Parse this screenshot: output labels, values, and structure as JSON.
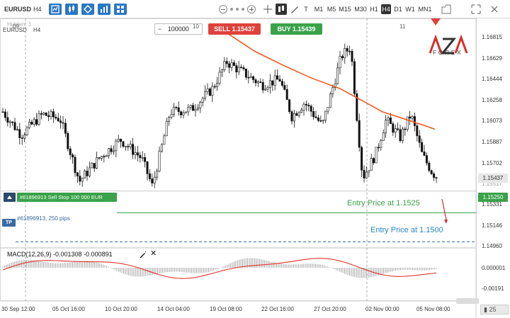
{
  "toolbar": {
    "symbol": "EURUSD",
    "timeframe": "H4",
    "timeframes": [
      "T",
      "M1",
      "M5",
      "M15",
      "M30",
      "H1",
      "H4",
      "D1",
      "W1",
      "MN1"
    ],
    "active_timeframe": "H4"
  },
  "chart": {
    "symbol_label": "EURUSD",
    "timeframe_label": "H4",
    "hidden_label": "Hidden: 1",
    "quantity": "100000",
    "quantity_minus": "−",
    "sell_label": "SELL 1.15437",
    "buy_label": "BUY 1.15439",
    "top_markers": [
      "09",
      "10",
      "11"
    ],
    "logo_text": "AZA",
    "logo_sub": "FOREX",
    "price_ticks": [
      "1.16815",
      "1.16629",
      "1.16444",
      "1.16258",
      "1.16073",
      "1.15887",
      "1.15702",
      "1.15517",
      "1.15331",
      "1.15146",
      "1.14960"
    ],
    "bid_price": "1.15437",
    "order_price": "1.15250",
    "order_label": "#61896913 Sell Stop 100 000 EUR",
    "tp_badge": "TP",
    "tp_label": "#61896913, 250 pips",
    "entry_1": "Entry Price at 1.1525",
    "entry_2": "Entry Price at 1.1500",
    "time_ticks": [
      "30 Sep 12:00",
      "05 Oct 16:00",
      "10 Oct 20:00",
      "14 Oct 04:00",
      "19 Oct 08:00",
      "22 Oct 16:00",
      "27 Oct 20:00",
      "02 Nov 00:00",
      "05 Nov 08:00"
    ],
    "scale_control": "25",
    "colors": {
      "sell": "#e0413b",
      "buy": "#3aa24a",
      "ma_line": "#f05a24",
      "macd_line": "#e0302a",
      "entry_green": "#3aa24a",
      "entry_blue": "#2a88c8",
      "tp_blue": "#3a6aa0"
    }
  },
  "macd": {
    "label": "MACD(12,26,9) -0.001308 -0.000891",
    "ticks": [
      "-0.000001",
      "-0.00082",
      "-0.00164",
      "-0.00191"
    ],
    "tick_labels": [
      "0.000001",
      "-0.00191"
    ]
  },
  "chart_data": {
    "type": "candlestick",
    "symbol": "EURUSD",
    "timeframe": "H4",
    "ylim": [
      1.1496,
      1.169
    ],
    "x_ticks": [
      "30 Sep 12:00",
      "05 Oct 16:00",
      "10 Oct 20:00",
      "14 Oct 04:00",
      "19 Oct 08:00",
      "22 Oct 16:00",
      "27 Oct 20:00",
      "02 Nov 00:00",
      "05 Nov 08:00"
    ],
    "last_price": 1.15437,
    "lines": [
      {
        "label": "#61896913 Sell Stop 100 000 EUR",
        "price": 1.1525
      },
      {
        "label": "#61896913, 250 pips",
        "price": 1.15
      }
    ]
  }
}
